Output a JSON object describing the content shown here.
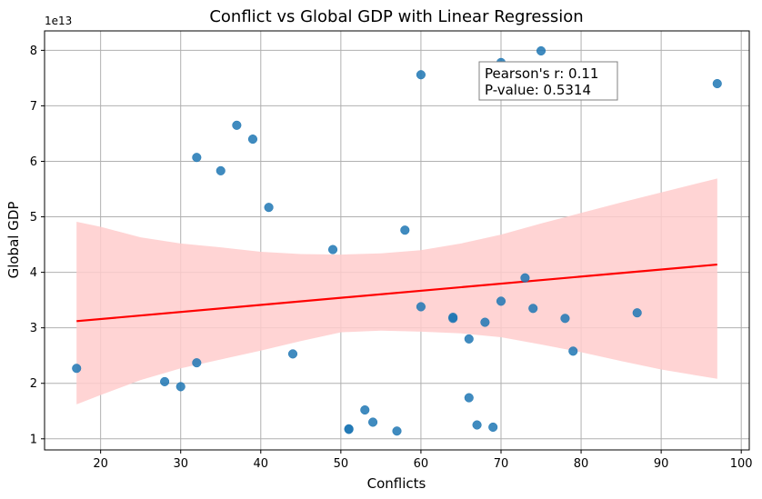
{
  "chart_data": {
    "type": "scatter",
    "title": "Conflict vs Global GDP with Linear Regression",
    "xlabel": "Conflicts",
    "ylabel": "Global GDP",
    "y_offset_label": "1e13",
    "xlim": [
      13,
      101
    ],
    "ylim": [
      0.8,
      8.35
    ],
    "x_ticks": [
      20,
      30,
      40,
      50,
      60,
      70,
      80,
      90,
      100
    ],
    "y_ticks": [
      1,
      2,
      3,
      4,
      5,
      6,
      7,
      8
    ],
    "grid": true,
    "colors": {
      "points": "#1f77b4",
      "regression_line": "#ff0000",
      "confidence_band": "#ffcccc"
    },
    "points": [
      {
        "x": 17,
        "y": 2.27
      },
      {
        "x": 28,
        "y": 2.03
      },
      {
        "x": 30,
        "y": 1.94
      },
      {
        "x": 32,
        "y": 6.07
      },
      {
        "x": 32,
        "y": 2.37
      },
      {
        "x": 35,
        "y": 5.83
      },
      {
        "x": 37,
        "y": 6.65
      },
      {
        "x": 39,
        "y": 6.4
      },
      {
        "x": 41,
        "y": 5.17
      },
      {
        "x": 44,
        "y": 2.53
      },
      {
        "x": 49,
        "y": 4.41
      },
      {
        "x": 51,
        "y": 1.17
      },
      {
        "x": 51,
        "y": 1.18
      },
      {
        "x": 53,
        "y": 1.52
      },
      {
        "x": 54,
        "y": 1.3
      },
      {
        "x": 57,
        "y": 1.14
      },
      {
        "x": 58,
        "y": 4.76
      },
      {
        "x": 60,
        "y": 7.56
      },
      {
        "x": 60,
        "y": 3.38
      },
      {
        "x": 64,
        "y": 3.17
      },
      {
        "x": 64,
        "y": 3.19
      },
      {
        "x": 66,
        "y": 2.8
      },
      {
        "x": 66,
        "y": 1.74
      },
      {
        "x": 67,
        "y": 1.25
      },
      {
        "x": 68,
        "y": 3.1
      },
      {
        "x": 69,
        "y": 1.21
      },
      {
        "x": 70,
        "y": 7.78
      },
      {
        "x": 70,
        "y": 3.48
      },
      {
        "x": 73,
        "y": 3.9
      },
      {
        "x": 74,
        "y": 3.35
      },
      {
        "x": 75,
        "y": 7.99
      },
      {
        "x": 78,
        "y": 3.17
      },
      {
        "x": 79,
        "y": 2.58
      },
      {
        "x": 87,
        "y": 3.27
      },
      {
        "x": 97,
        "y": 7.4
      }
    ],
    "regression": {
      "x": [
        17,
        97
      ],
      "y": [
        3.12,
        4.14
      ]
    },
    "confidence_band": {
      "x": [
        17,
        20,
        25,
        30,
        35,
        40,
        45,
        50,
        55,
        60,
        65,
        70,
        75,
        80,
        85,
        90,
        97
      ],
      "upper": [
        4.91,
        4.82,
        4.63,
        4.52,
        4.45,
        4.37,
        4.33,
        4.32,
        4.34,
        4.4,
        4.52,
        4.68,
        4.88,
        5.07,
        5.26,
        5.44,
        5.69
      ],
      "lower": [
        1.62,
        1.79,
        2.06,
        2.27,
        2.43,
        2.59,
        2.76,
        2.92,
        2.95,
        2.93,
        2.9,
        2.83,
        2.7,
        2.56,
        2.4,
        2.25,
        2.08
      ]
    },
    "annotation": {
      "line1": "Pearson's r: 0.11",
      "line2": "P-value: 0.5314"
    }
  }
}
